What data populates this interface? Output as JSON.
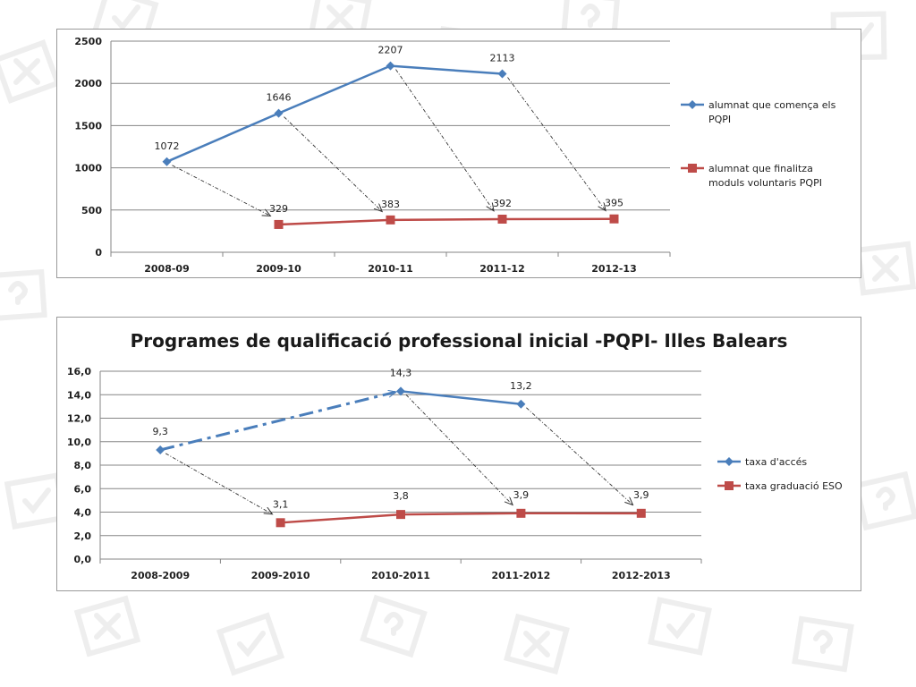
{
  "chart_data": [
    {
      "type": "line",
      "title": "",
      "categories": [
        "2008-09",
        "2009-10",
        "2010-11",
        "2011-12",
        "2012-13"
      ],
      "ylim": [
        0,
        2500
      ],
      "yticks": [
        "0",
        "500",
        "1000",
        "1500",
        "2000",
        "2500"
      ],
      "ytick_values": [
        0,
        500,
        1000,
        1500,
        2000,
        2500
      ],
      "grid": true,
      "legend_position": "right",
      "series": [
        {
          "name": "alumnat que comença els PQPI",
          "name_lines": [
            "alumnat que comença els",
            "PQPI"
          ],
          "color": "#4a7ebb",
          "marker": "diamond",
          "values": [
            1072,
            1646,
            2207,
            2113,
            null
          ],
          "labels": [
            "1072",
            "1646",
            "2207",
            "2113",
            ""
          ]
        },
        {
          "name": "alumnat que finalitza moduls voluntaris PQPI",
          "name_lines": [
            "alumnat que finalitza",
            "moduls voluntaris PQPI"
          ],
          "color": "#be4b48",
          "marker": "square",
          "values": [
            null,
            329,
            383,
            392,
            395
          ],
          "labels": [
            "",
            "329",
            "383",
            "392",
            "395"
          ]
        }
      ],
      "annotations": {
        "arrows": [
          {
            "from": [
              0,
              1072
            ],
            "to": [
              1,
              329
            ]
          },
          {
            "from": [
              1,
              1646
            ],
            "to": [
              2,
              383
            ]
          },
          {
            "from": [
              2,
              2207
            ],
            "to": [
              3,
              392
            ]
          },
          {
            "from": [
              3,
              2113
            ],
            "to": [
              4,
              395
            ]
          }
        ]
      }
    },
    {
      "type": "line",
      "title": "Programes de qualificació professional inicial -PQPI- Illes Balears",
      "categories": [
        "2008-2009",
        "2009-2010",
        "2010-2011",
        "2011-2012",
        "2012-2013"
      ],
      "ylim": [
        0,
        16
      ],
      "yticks": [
        "0,0",
        "2,0",
        "4,0",
        "6,0",
        "8,0",
        "10,0",
        "12,0",
        "14,0",
        "16,0"
      ],
      "ytick_values": [
        0,
        2,
        4,
        6,
        8,
        10,
        12,
        14,
        16
      ],
      "grid": true,
      "legend_position": "right",
      "series": [
        {
          "name": "taxa d'accés",
          "name_lines": [
            "taxa d'accés"
          ],
          "color": "#4a7ebb",
          "marker": "diamond",
          "values": [
            9.3,
            null,
            14.3,
            13.2,
            null
          ],
          "labels": [
            "9,3",
            "",
            "14,3",
            "13,2",
            ""
          ]
        },
        {
          "name": "taxa graduació ESO",
          "name_lines": [
            "taxa graduació ESO"
          ],
          "color": "#be4b48",
          "marker": "square",
          "values": [
            null,
            3.1,
            3.8,
            3.9,
            3.9
          ],
          "labels": [
            "",
            "3,1",
            "3,8",
            "3,9",
            "3,9"
          ]
        }
      ],
      "annotations": {
        "dashdot_arrow": {
          "from": [
            0,
            9.3
          ],
          "to": [
            2,
            14.3
          ],
          "color": "#4a7ebb"
        },
        "arrows": [
          {
            "from": [
              0,
              9.3
            ],
            "to": [
              1,
              3.1
            ]
          },
          {
            "from": [
              2,
              14.3
            ],
            "to": [
              3,
              3.9
            ]
          },
          {
            "from": [
              3,
              13.2
            ],
            "to": [
              4,
              3.9
            ]
          }
        ]
      }
    }
  ]
}
